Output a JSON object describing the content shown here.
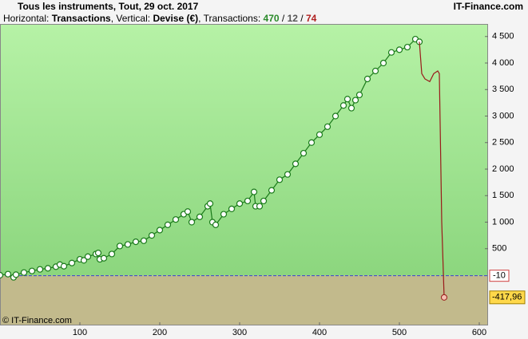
{
  "chart_data": {
    "type": "line",
    "title": "Tous les instruments, Tout, 29 oct. 2017",
    "brand": "IT-Finance.com",
    "footer": "© IT-Finance.com",
    "subtitle": {
      "h_label": "Horizontal:",
      "h_value": "Transactions",
      "v_label": "Vertical:",
      "v_value": "Devise (€)",
      "t_label": "Transactions:",
      "wins": "470",
      "sep1": "/",
      "neutral": "12",
      "sep2": "/",
      "losses": "74"
    },
    "xlim": [
      0,
      611
    ],
    "ylim": [
      -947,
      4737
    ],
    "xticks": [
      100,
      200,
      300,
      400,
      500,
      600
    ],
    "yticks": [
      {
        "value": 500,
        "label": "500"
      },
      {
        "value": 1000,
        "label": "1 000"
      },
      {
        "value": 1500,
        "label": "1 500"
      },
      {
        "value": 2000,
        "label": "2 000"
      },
      {
        "value": 2500,
        "label": "2 500"
      },
      {
        "value": 3000,
        "label": "3 000"
      },
      {
        "value": 3500,
        "label": "3 500"
      },
      {
        "value": 4000,
        "label": "4 000"
      },
      {
        "value": 4500,
        "label": "4 500"
      }
    ],
    "reference": {
      "value": -10,
      "label": "-10",
      "color": "#4040d0"
    },
    "last": {
      "value": -417.96,
      "label": "-417,96"
    },
    "series": [
      {
        "color": "#1a7a1a",
        "markers": true,
        "x": [
          0,
          10,
          17,
          20,
          30,
          40,
          50,
          60,
          70,
          75,
          80,
          90,
          100,
          105,
          110,
          120,
          123,
          125,
          130,
          140,
          150,
          160,
          170,
          180,
          190,
          200,
          210,
          220,
          230,
          235,
          240,
          250,
          260,
          263,
          266,
          270,
          280,
          290,
          300,
          310,
          318,
          320,
          325,
          330,
          340,
          350,
          360,
          370,
          380,
          390,
          400,
          410,
          420,
          430,
          435,
          440,
          445,
          450,
          460,
          470,
          480,
          490,
          500,
          510,
          520,
          525
        ],
        "values": [
          0,
          20,
          -40,
          10,
          50,
          80,
          110,
          130,
          160,
          200,
          170,
          230,
          300,
          280,
          350,
          400,
          420,
          300,
          320,
          400,
          550,
          580,
          630,
          650,
          750,
          850,
          950,
          1050,
          1150,
          1200,
          1000,
          1100,
          1300,
          1350,
          1000,
          950,
          1150,
          1250,
          1350,
          1400,
          1570,
          1300,
          1300,
          1400,
          1600,
          1800,
          1900,
          2100,
          2300,
          2500,
          2650,
          2800,
          3000,
          3200,
          3320,
          3150,
          3300,
          3400,
          3700,
          3850,
          4000,
          4200,
          4250,
          4300,
          4450,
          4400
        ]
      },
      {
        "color": "#9a1a1a",
        "markers": false,
        "x": [
          525,
          528,
          532,
          538,
          543,
          548,
          550,
          553,
          556
        ],
        "values": [
          4400,
          3800,
          3700,
          3650,
          3800,
          3850,
          3800,
          1000,
          -417.96
        ]
      }
    ]
  }
}
